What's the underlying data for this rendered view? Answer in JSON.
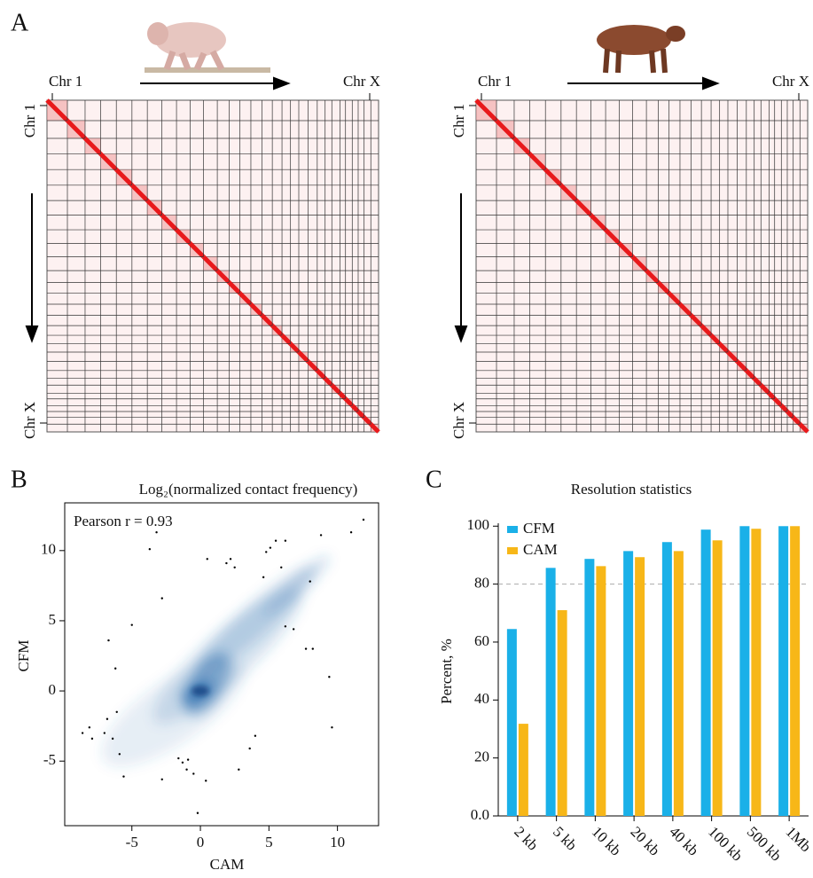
{
  "chart_data": [
    {
      "type": "heatmap",
      "panel": "A",
      "x_start_label": "Chr 1",
      "x_end_label": "Chr X",
      "y_start_label": "Chr 1",
      "y_end_label": "Chr X"
    },
    {
      "type": "heatmap",
      "x_start_label": "Chr 1",
      "x_end_label": "Chr X",
      "y_start_label": "Chr 1",
      "y_end_label": "Chr X"
    },
    {
      "type": "scatter",
      "panel": "B",
      "title": "Log₂(normalized contact frequency)",
      "annotation": "Pearson r = 0.93",
      "xlabel": "CAM",
      "ylabel": "CFM",
      "xlim": [
        -9.9,
        13
      ],
      "ylim": [
        -9.6,
        13.4
      ],
      "xticks": [
        -5,
        0,
        5,
        10
      ],
      "yticks": [
        -5,
        0,
        5,
        10
      ],
      "color": "#000000",
      "x": [
        -8.6,
        -8.1,
        -7.9,
        -7.0,
        -6.8,
        -6.4,
        -6.7,
        -6.2,
        -6.1,
        -5.9,
        -5.6,
        -5.0,
        -3.7,
        -3.2,
        -2.8,
        -2.8,
        -1.6,
        -1.3,
        -1.0,
        -0.9,
        -0.5,
        -0.2,
        0.4,
        0.5,
        1.9,
        2.2,
        2.5,
        2.8,
        3.6,
        4.0,
        4.8,
        5.5,
        6.2,
        5.9,
        6.2,
        6.8,
        7.7,
        8.0,
        8.2,
        9.4,
        9.6,
        8.8,
        11.0,
        11.9,
        4.6,
        5.1
      ],
      "y": [
        -3.0,
        -2.6,
        -3.4,
        -3.0,
        -2.0,
        -3.4,
        3.6,
        1.6,
        -1.5,
        -4.5,
        -6.1,
        4.7,
        10.1,
        11.3,
        6.6,
        -6.3,
        -4.8,
        -5.1,
        -5.6,
        -4.9,
        -5.9,
        -8.7,
        -6.4,
        9.4,
        9.1,
        9.4,
        8.8,
        -5.6,
        -4.1,
        -3.2,
        9.9,
        10.7,
        10.7,
        8.8,
        4.6,
        4.4,
        3.0,
        7.8,
        3.0,
        1.0,
        -2.6,
        11.1,
        11.3,
        12.2,
        8.1,
        10.2
      ]
    },
    {
      "type": "bar",
      "panel": "C",
      "title": "Resolution statistics",
      "ylabel": "Percent, %",
      "categories": [
        "2 kb",
        "5 kb",
        "10 kb",
        "20 kb",
        "40 kb",
        "100 kb",
        "500 kb",
        "1Mb"
      ],
      "series": [
        {
          "name": "CFM",
          "color": "#1ab0e8",
          "values": [
            64.5,
            85.6,
            88.7,
            91.4,
            94.5,
            98.8,
            100,
            100
          ]
        },
        {
          "name": "CAM",
          "color": "#f7b718",
          "values": [
            31.8,
            71,
            86.2,
            89.3,
            91.4,
            95.1,
            99.1,
            100
          ]
        }
      ],
      "ylim": [
        0,
        101
      ],
      "yticks": [
        {
          "value": 0,
          "label": "0.0"
        },
        20,
        40,
        60,
        80,
        100
      ],
      "reference_line": 80
    }
  ]
}
